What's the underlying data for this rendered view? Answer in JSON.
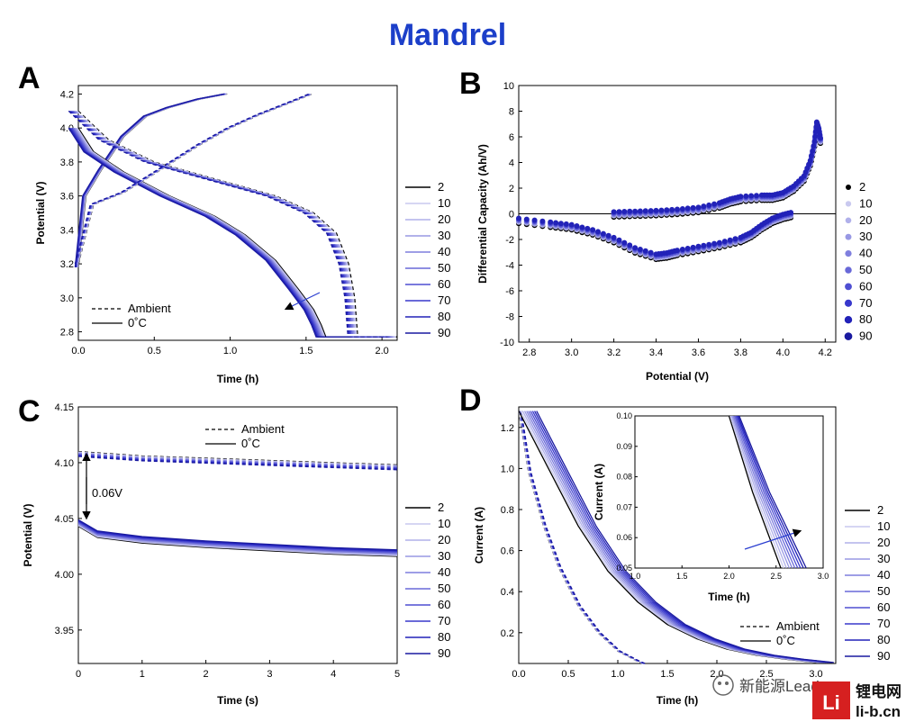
{
  "figure_title": "Mandrel",
  "watermark": {
    "wechat": "新能源Leader",
    "brand_cn": "锂电网",
    "brand_url": "li-b.cn",
    "brand_mark": "Li"
  },
  "colors": {
    "title": "#1c3fc9",
    "black": "#000000",
    "ramp": [
      "#000000",
      "#c9c9ef",
      "#b0b0ea",
      "#9898e4",
      "#7f7fde",
      "#6868d8",
      "#4f4fd2",
      "#3838cc",
      "#2222b8",
      "#1a1aa0"
    ]
  },
  "chart_data": [
    {
      "panel": "A",
      "type": "line",
      "xlabel": "Time (h)",
      "ylabel": "Potential (V)",
      "xlim": [
        0,
        2.1
      ],
      "ylim": [
        2.75,
        4.25
      ],
      "xticks": [
        "0.0",
        "0.5",
        "1.0",
        "1.5",
        "2.0"
      ],
      "yticks": [
        "2.8",
        "3.0",
        "3.2",
        "3.4",
        "3.6",
        "3.8",
        "4.0",
        "4.2"
      ],
      "legend_cycles": [
        "2",
        "10",
        "20",
        "30",
        "40",
        "50",
        "60",
        "70",
        "80",
        "90"
      ],
      "style_legend": [
        {
          "label": "Ambient",
          "dash": true
        },
        {
          "label": "0˚C",
          "dash": false
        }
      ],
      "series": [
        {
          "name": "0˚C charge",
          "dash": false,
          "x": [
            0,
            0.05,
            0.15,
            0.3,
            0.45,
            0.6,
            0.8,
            0.98
          ],
          "y": [
            3.18,
            3.6,
            3.75,
            3.95,
            4.07,
            4.12,
            4.17,
            4.2
          ]
        },
        {
          "name": "0˚C discharge",
          "dash": false,
          "x": [
            0,
            0.1,
            0.3,
            0.6,
            0.9,
            1.1,
            1.3,
            1.45,
            1.55,
            1.6,
            1.63,
            2.1
          ],
          "y": [
            4.0,
            3.86,
            3.74,
            3.6,
            3.48,
            3.37,
            3.22,
            3.05,
            2.93,
            2.84,
            2.77,
            2.77
          ]
        },
        {
          "name": "Ambient charge",
          "dash": true,
          "x": [
            0,
            0.1,
            0.3,
            0.5,
            0.8,
            1.0,
            1.2,
            1.4,
            1.54
          ],
          "y": [
            3.2,
            3.55,
            3.62,
            3.73,
            3.9,
            4.0,
            4.08,
            4.15,
            4.2
          ]
        },
        {
          "name": "Ambient discharge",
          "dash": true,
          "x": [
            0,
            0.2,
            0.5,
            0.9,
            1.3,
            1.55,
            1.7,
            1.78,
            1.82,
            1.84,
            2.1
          ],
          "y": [
            4.1,
            3.93,
            3.8,
            3.7,
            3.6,
            3.5,
            3.38,
            3.2,
            3.0,
            2.77,
            2.77
          ]
        }
      ]
    },
    {
      "panel": "B",
      "type": "scatter",
      "xlabel": "Potential (V)",
      "ylabel": "Differential Capacity (Ah/V)",
      "xlim": [
        2.75,
        4.25
      ],
      "ylim": [
        -10,
        10
      ],
      "xticks": [
        "2.8",
        "3.0",
        "3.2",
        "3.4",
        "3.6",
        "3.8",
        "4.0",
        "4.2"
      ],
      "yticks": [
        "-10",
        "-8",
        "-6",
        "-4",
        "-2",
        "0",
        "2",
        "4",
        "6",
        "8",
        "10"
      ],
      "legend_cycles": [
        "2",
        "10",
        "20",
        "30",
        "40",
        "50",
        "60",
        "70",
        "80",
        "90"
      ],
      "series": [
        {
          "name": "charge",
          "x": [
            3.2,
            3.3,
            3.4,
            3.5,
            3.6,
            3.7,
            3.75,
            3.8,
            3.9,
            3.95,
            4.0,
            4.05,
            4.1,
            4.13,
            4.15,
            4.16,
            4.17,
            4.18
          ],
          "y": [
            0,
            0.05,
            0.1,
            0.2,
            0.35,
            0.7,
            1.0,
            1.2,
            1.3,
            1.3,
            1.5,
            2.0,
            2.8,
            4.0,
            5.5,
            7.0,
            6.5,
            5.5
          ]
        },
        {
          "name": "discharge",
          "x": [
            2.75,
            2.9,
            3.0,
            3.1,
            3.2,
            3.3,
            3.4,
            3.45,
            3.5,
            3.6,
            3.7,
            3.8,
            3.85,
            3.9,
            3.95,
            4.0,
            4.05
          ],
          "y": [
            -0.5,
            -0.8,
            -1.0,
            -1.4,
            -2.0,
            -2.8,
            -3.3,
            -3.2,
            -3.0,
            -2.7,
            -2.4,
            -2.0,
            -1.6,
            -1.0,
            -0.5,
            -0.2,
            0
          ]
        }
      ]
    },
    {
      "panel": "C",
      "type": "line",
      "xlabel": "Time (s)",
      "ylabel": "Potential (V)",
      "xlim": [
        0,
        5
      ],
      "ylim": [
        3.92,
        4.15
      ],
      "xticks": [
        "0",
        "1",
        "2",
        "3",
        "4",
        "5"
      ],
      "yticks": [
        "3.95",
        "4.00",
        "4.05",
        "4.10",
        "4.15"
      ],
      "annotation": "0.06V",
      "legend_cycles": [
        "2",
        "10",
        "20",
        "30",
        "40",
        "50",
        "60",
        "70",
        "80",
        "90"
      ],
      "style_legend": [
        {
          "label": "Ambient",
          "dash": true
        },
        {
          "label": "0˚C",
          "dash": false
        }
      ],
      "series": [
        {
          "name": "Ambient",
          "dash": true,
          "x": [
            0,
            0.5,
            1,
            2,
            3,
            4,
            5
          ],
          "y": [
            4.11,
            4.108,
            4.106,
            4.104,
            4.102,
            4.1,
            4.098
          ]
        },
        {
          "name": "0˚C",
          "dash": false,
          "x": [
            0,
            0.3,
            1,
            2,
            3,
            4,
            5
          ],
          "y": [
            4.043,
            4.033,
            4.028,
            4.024,
            4.021,
            4.018,
            4.016
          ]
        }
      ]
    },
    {
      "panel": "D",
      "type": "line",
      "xlabel": "Time (h)",
      "ylabel": "Current (A)",
      "xlim": [
        0,
        3.2
      ],
      "ylim": [
        0.05,
        1.3
      ],
      "xticks": [
        "0.0",
        "0.5",
        "1.0",
        "1.5",
        "2.0",
        "2.5",
        "3.0"
      ],
      "yticks": [
        "0.2",
        "0.4",
        "0.6",
        "0.8",
        "1.0",
        "1.2"
      ],
      "legend_cycles": [
        "2",
        "10",
        "20",
        "30",
        "40",
        "50",
        "60",
        "70",
        "80",
        "90"
      ],
      "style_legend": [
        {
          "label": "Ambient",
          "dash": true
        },
        {
          "label": "0˚C",
          "dash": false
        }
      ],
      "inset": {
        "xlabel": "Time (h)",
        "ylabel": "Current (A)",
        "xlim": [
          1.0,
          3.0
        ],
        "ylim": [
          0.05,
          0.1
        ],
        "xticks": [
          "1.0",
          "1.5",
          "2.0",
          "2.5",
          "3.0"
        ],
        "yticks": [
          "0.05",
          "0.06",
          "0.07",
          "0.08",
          "0.09",
          "0.10"
        ]
      },
      "series": [
        {
          "name": "Ambient",
          "dash": true,
          "x": [
            0,
            0.1,
            0.25,
            0.4,
            0.6,
            0.8,
            1.0,
            1.2,
            1.25
          ],
          "y": [
            1.28,
            0.98,
            0.72,
            0.52,
            0.33,
            0.2,
            0.11,
            0.06,
            0.05
          ]
        },
        {
          "name": "0˚C",
          "dash": false,
          "x": [
            0,
            0.3,
            0.6,
            0.9,
            1.2,
            1.5,
            1.8,
            2.1,
            2.4,
            2.7,
            3.0
          ],
          "y": [
            1.28,
            1.0,
            0.72,
            0.5,
            0.35,
            0.24,
            0.17,
            0.12,
            0.09,
            0.07,
            0.055
          ]
        }
      ]
    }
  ]
}
